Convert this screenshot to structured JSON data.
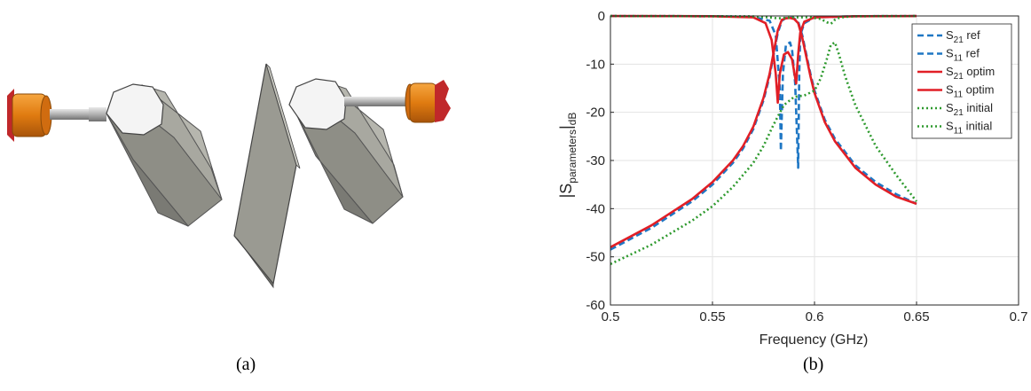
{
  "figure": {
    "caption_a": "(a)",
    "caption_b": "(b)"
  },
  "model_colors": {
    "connector": "#e07b10",
    "connector_dark": "#a8540a",
    "flange": "#c0282a",
    "pin": "#a8a8a8",
    "resonator_side": "#8e8e86",
    "resonator_face": "#b8b8b0",
    "resonator_top": "#f4f4f4",
    "plate": "#9a9a92"
  },
  "chart_data": {
    "type": "line",
    "xlabel": "Frequency (GHz)",
    "ylabel": "|S",
    "ylabel_sub": "parameters",
    "ylabel_tail": "|",
    "ylabel_unit": "dB",
    "xlim": [
      0.5,
      0.7
    ],
    "ylim": [
      -60,
      0
    ],
    "xticks": [
      0.5,
      0.55,
      0.6,
      0.65,
      0.7
    ],
    "xtick_labels": [
      "0.5",
      "0.55",
      "0.6",
      "0.65",
      "0.7"
    ],
    "yticks": [
      0,
      -10,
      -20,
      -30,
      -40,
      -50,
      -60
    ],
    "ytick_labels": [
      "0",
      "-10",
      "-20",
      "-30",
      "-40",
      "-50",
      "-60"
    ],
    "grid": true,
    "legend_position": "top-right",
    "series": [
      {
        "key": "s21_ref",
        "sym": "S",
        "sub": "21",
        "suffix": " ref",
        "color": "#1f77c4",
        "dash": "7,4",
        "width": 2.6,
        "x": [
          0.5,
          0.52,
          0.54,
          0.55,
          0.56,
          0.565,
          0.57,
          0.575,
          0.578,
          0.58,
          0.582,
          0.584,
          0.586,
          0.588,
          0.59,
          0.592,
          0.594,
          0.596,
          0.598,
          0.6,
          0.605,
          0.61,
          0.62,
          0.63,
          0.64,
          0.65
        ],
        "y": [
          -48.5,
          -44,
          -38.5,
          -35,
          -30.5,
          -27.5,
          -23.5,
          -17.5,
          -12.5,
          -8,
          -3.5,
          -1,
          -0.4,
          -0.3,
          -0.5,
          -1.2,
          -4,
          -8,
          -12,
          -15.5,
          -21.5,
          -25.5,
          -31,
          -34.5,
          -37,
          -39
        ]
      },
      {
        "key": "s11_ref",
        "sym": "S",
        "sub": "11",
        "suffix": " ref",
        "color": "#1f77c4",
        "dash": "7,4",
        "width": 2.6,
        "x": [
          0.5,
          0.55,
          0.57,
          0.578,
          0.581,
          0.583,
          0.5835,
          0.5845,
          0.586,
          0.588,
          0.589,
          0.5905,
          0.592,
          0.5925,
          0.593,
          0.595,
          0.6,
          0.62,
          0.65
        ],
        "y": [
          -0.02,
          -0.05,
          -0.2,
          -1,
          -4,
          -15,
          -28,
          -12,
          -6,
          -5.5,
          -7,
          -14,
          -31.5,
          -12,
          -4,
          -1.5,
          -0.3,
          -0.05,
          -0.02
        ]
      },
      {
        "key": "s21_optim",
        "sym": "S",
        "sub": "21",
        "suffix": " optim",
        "color": "#e11f26",
        "dash": "",
        "width": 2.6,
        "x": [
          0.5,
          0.52,
          0.54,
          0.55,
          0.56,
          0.565,
          0.57,
          0.575,
          0.578,
          0.58,
          0.582,
          0.584,
          0.586,
          0.588,
          0.59,
          0.592,
          0.594,
          0.596,
          0.598,
          0.6,
          0.605,
          0.61,
          0.62,
          0.63,
          0.64,
          0.65
        ],
        "y": [
          -48,
          -43.5,
          -38,
          -34.5,
          -30,
          -27,
          -23,
          -17,
          -12,
          -7.5,
          -3,
          -0.8,
          -0.5,
          -0.4,
          -0.6,
          -1.5,
          -4.5,
          -8.5,
          -12.5,
          -16,
          -22,
          -26,
          -31.5,
          -35,
          -37.5,
          -39
        ]
      },
      {
        "key": "s11_optim",
        "sym": "S",
        "sub": "11",
        "suffix": " optim",
        "color": "#e11f26",
        "dash": "",
        "width": 2.6,
        "x": [
          0.5,
          0.55,
          0.57,
          0.576,
          0.579,
          0.581,
          0.582,
          0.583,
          0.585,
          0.587,
          0.589,
          0.591,
          0.592,
          0.593,
          0.595,
          0.6,
          0.62,
          0.65
        ],
        "y": [
          -0.02,
          -0.05,
          -0.3,
          -1.5,
          -5,
          -12,
          -18,
          -12,
          -8,
          -7.5,
          -9,
          -14,
          -8,
          -3.5,
          -1.2,
          -0.3,
          -0.05,
          -0.02
        ]
      },
      {
        "key": "s21_initial",
        "sym": "S",
        "sub": "21",
        "suffix": " initial",
        "color": "#2e9a2e",
        "dash": "2,3",
        "width": 2.6,
        "x": [
          0.5,
          0.52,
          0.54,
          0.55,
          0.56,
          0.57,
          0.575,
          0.58,
          0.585,
          0.59,
          0.595,
          0.6,
          0.603,
          0.606,
          0.608,
          0.61,
          0.612,
          0.615,
          0.62,
          0.63,
          0.64,
          0.65
        ],
        "y": [
          -51.5,
          -47.5,
          -42.5,
          -39.5,
          -35.5,
          -30.5,
          -27,
          -22.5,
          -18.5,
          -16.8,
          -16.5,
          -15.5,
          -13,
          -9,
          -6,
          -5.5,
          -8,
          -12.5,
          -18.5,
          -27,
          -33,
          -38.5
        ]
      },
      {
        "key": "s11_initial",
        "sym": "S",
        "sub": "11",
        "suffix": " initial",
        "color": "#2e9a2e",
        "dash": "2,3",
        "width": 2.6,
        "x": [
          0.5,
          0.55,
          0.57,
          0.578,
          0.582,
          0.585,
          0.59,
          0.598,
          0.603,
          0.606,
          0.608,
          0.609,
          0.61,
          0.612,
          0.615,
          0.62,
          0.65
        ],
        "y": [
          -0.02,
          -0.05,
          -0.1,
          -0.3,
          -0.5,
          -0.4,
          -0.3,
          -0.3,
          -0.6,
          -1.3,
          -1.6,
          -1.3,
          -0.8,
          -0.4,
          -0.2,
          -0.05,
          -0.02
        ]
      }
    ]
  }
}
